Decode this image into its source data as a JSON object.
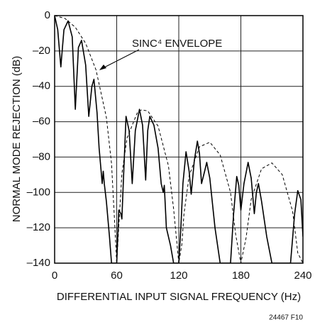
{
  "chart_data": {
    "type": "line",
    "xlabel": "DIFFERENTIAL INPUT SIGNAL FREQUENCY (Hz)",
    "ylabel": "NORMAL MODE REJECTION (dB)",
    "annotation": "SINC⁴ ENVELOPE",
    "footnote": "24467 F10",
    "xlim": [
      0,
      240
    ],
    "xticks": [
      0,
      60,
      120,
      180,
      240
    ],
    "ylim": [
      -140,
      0
    ],
    "yticks": [
      {
        "value": -140,
        "label": "–140"
      },
      {
        "value": -120,
        "label": "–120"
      },
      {
        "value": -100,
        "label": "–100"
      },
      {
        "value": -80,
        "label": "–80"
      },
      {
        "value": -60,
        "label": "–60"
      },
      {
        "value": -40,
        "label": "–40"
      },
      {
        "value": -20,
        "label": "–20"
      },
      0
    ],
    "grid": true,
    "series": [
      {
        "color": "#000000",
        "dash": "solid",
        "x": [
          0,
          3,
          6,
          9,
          13,
          17,
          20,
          23,
          26,
          30,
          33,
          36,
          38,
          41,
          43,
          46,
          47,
          48,
          50,
          53,
          55,
          60,
          62,
          64,
          65,
          66,
          69,
          72,
          75,
          78,
          82,
          85,
          88,
          90,
          92,
          96,
          100,
          103,
          105,
          106,
          108,
          112,
          115,
          120,
          122,
          124,
          127,
          130,
          132,
          135,
          138,
          140,
          142,
          145,
          147,
          150,
          155,
          160,
          170,
          173,
          176,
          178,
          180,
          183,
          187,
          190,
          193,
          195,
          197,
          200,
          205,
          210,
          228,
          232,
          235,
          238,
          240
        ],
        "values": [
          0,
          -8,
          -29,
          -8,
          -3,
          -12,
          -53,
          -18,
          -14,
          -28,
          -57,
          -40,
          -36,
          -55,
          -75,
          -95,
          -88,
          -95,
          -105,
          -125,
          -140,
          -140,
          -110,
          -112,
          -115,
          -100,
          -57,
          -65,
          -95,
          -65,
          -53,
          -62,
          -93,
          -65,
          -57,
          -62,
          -75,
          -95,
          -100,
          -96,
          -120,
          -130,
          -140,
          -140,
          -120,
          -95,
          -77,
          -88,
          -101,
          -82,
          -71,
          -78,
          -95,
          -88,
          -83,
          -92,
          -120,
          -140,
          -140,
          -112,
          -91,
          -96,
          -110,
          -95,
          -83,
          -92,
          -112,
          -100,
          -95,
          -105,
          -125,
          -140,
          -140,
          -112,
          -99,
          -104,
          -125
        ]
      },
      {
        "color": "#000000",
        "dash": "dashed",
        "x": [
          0,
          10,
          20,
          30,
          40,
          50,
          55,
          58,
          60,
          62,
          65,
          70,
          80,
          84,
          90,
          100,
          110,
          115,
          120,
          123,
          125,
          130,
          140,
          150,
          160,
          170,
          175,
          180,
          185,
          190,
          200,
          210,
          220,
          230,
          235,
          240
        ],
        "values": [
          0,
          -1.6,
          -6.6,
          -15.7,
          -30.7,
          -57.5,
          -83.7,
          -117,
          -140,
          -119.4,
          -89.5,
          -69.2,
          -54.8,
          -53.3,
          -53.9,
          -62.5,
          -84.9,
          -109.3,
          -140,
          -129.2,
          -112.2,
          -90.7,
          -74.2,
          -71.6,
          -78.8,
          -100,
          -123.9,
          -140,
          -125.8,
          -103.9,
          -86.6,
          -83.3,
          -89.9,
          -110.6,
          -134.2,
          -140
        ]
      }
    ]
  }
}
